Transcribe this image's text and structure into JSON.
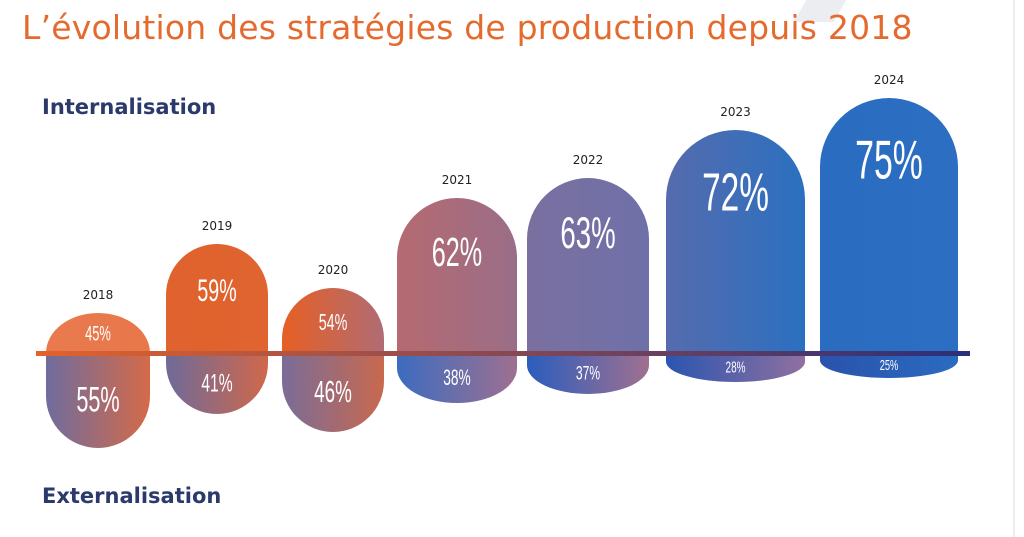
{
  "chart_data": {
    "type": "bar",
    "title": "L’évolution des stratégies de production depuis 2018",
    "categories": [
      "2018",
      "2019",
      "2020",
      "2021",
      "2022",
      "2023",
      "2024"
    ],
    "series": [
      {
        "name": "Internalisation",
        "values": [
          45,
          59,
          54,
          62,
          63,
          72,
          75
        ]
      },
      {
        "name": "Externalisation",
        "values": [
          55,
          41,
          46,
          38,
          37,
          28,
          25
        ]
      }
    ],
    "value_labels_int": [
      "45%",
      "59%",
      "54%",
      "62%",
      "63%",
      "72%",
      "75%"
    ],
    "value_labels_ext": [
      "55%",
      "41%",
      "46%",
      "38%",
      "37%",
      "28%",
      "25%"
    ],
    "unit": "%",
    "colors": {
      "title": "#E56A2E",
      "labels": "#2B3A6B",
      "orange": "#E3622C",
      "blue": "#2A6CC0"
    }
  }
}
